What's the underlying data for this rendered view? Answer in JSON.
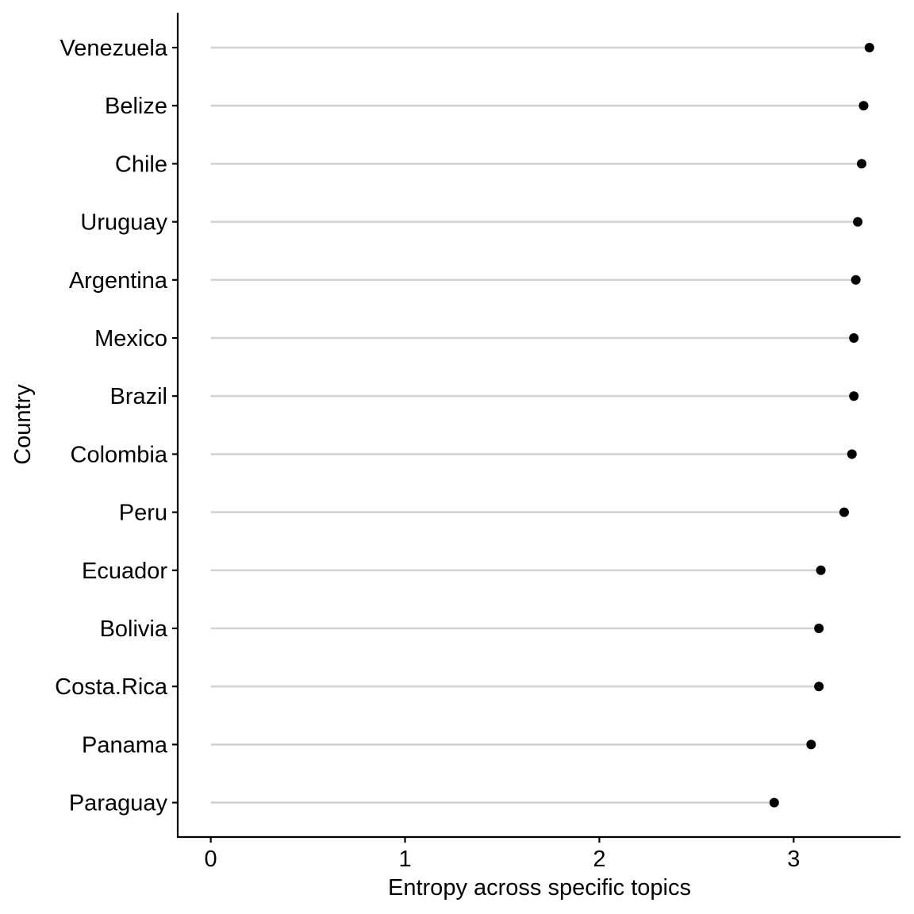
{
  "chart_data": {
    "type": "lollipop",
    "xlabel": "Entropy across specific topics",
    "ylabel": "Country",
    "xlim": [
      -0.17,
      3.55
    ],
    "x_ticks": [
      0,
      1,
      2,
      3
    ],
    "x_tick_labels": [
      "0",
      "1",
      "2",
      "3"
    ],
    "grid": false,
    "legend": "none",
    "colors": {
      "stem": "#d3d3d3",
      "point": "#000000",
      "axis": "#000000"
    },
    "categories": [
      "Venezuela",
      "Belize",
      "Chile",
      "Uruguay",
      "Argentina",
      "Mexico",
      "Brazil",
      "Colombia",
      "Peru",
      "Ecuador",
      "Bolivia",
      "Costa.Rica",
      "Panama",
      "Paraguay"
    ],
    "values": [
      3.39,
      3.36,
      3.35,
      3.33,
      3.32,
      3.31,
      3.31,
      3.3,
      3.26,
      3.14,
      3.13,
      3.13,
      3.09,
      2.9
    ]
  }
}
